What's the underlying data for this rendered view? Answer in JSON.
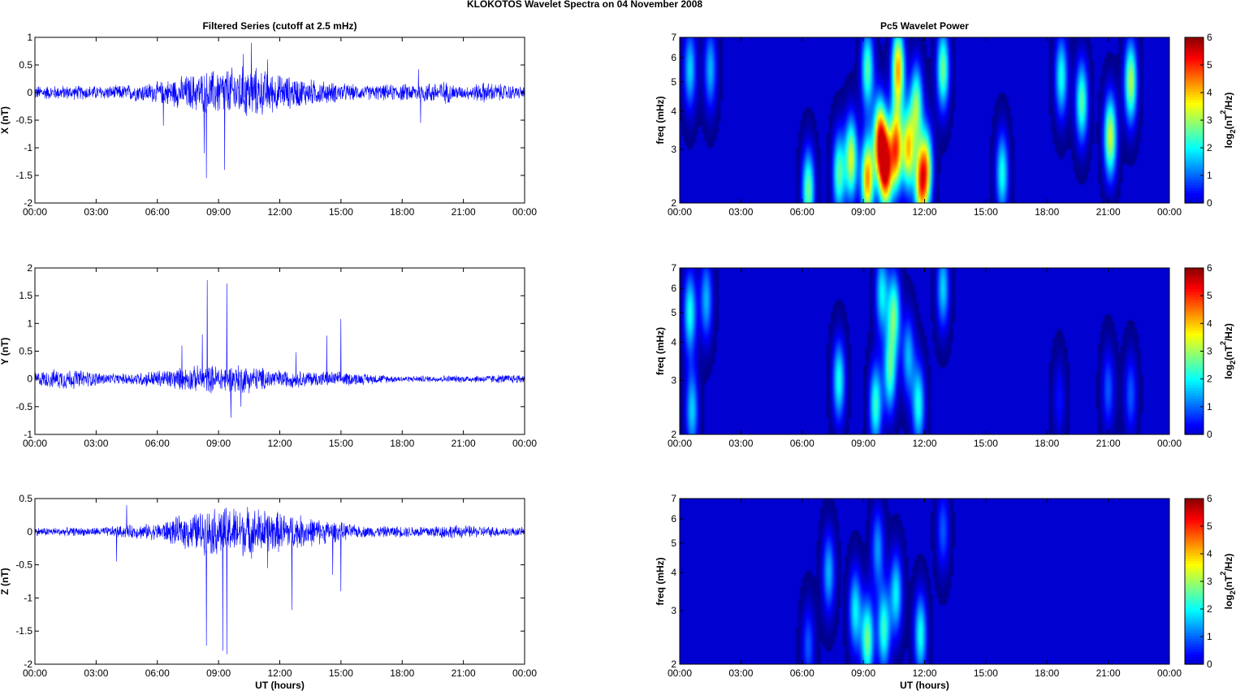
{
  "figure_title": "KLOKOTOS Wavelet Spectra on 04 November  2008",
  "time_ticks": [
    "00:00",
    "03:00",
    "06:00",
    "09:00",
    "12:00",
    "15:00",
    "18:00",
    "21:00",
    "00:00"
  ],
  "colorbar": {
    "label_prefix": "log",
    "label_sub": "2",
    "label_mid": "(nT",
    "label_sup": "2",
    "label_end": "/Hz)",
    "ticks": [
      "0",
      "1",
      "2",
      "3",
      "4",
      "5",
      "6"
    ],
    "colormap": "jet",
    "range": [
      0,
      6
    ]
  },
  "chart_data": [
    {
      "type": "line",
      "title": "Filtered Series (cutoff at 2.5 mHz)",
      "ylabel": "X (nT)",
      "xlabel": "",
      "xlim_hours": [
        0,
        24
      ],
      "ylim": [
        -2,
        1
      ],
      "yticks": [
        "1",
        "0.5",
        "0",
        "-0.5",
        "-1",
        "-1.5",
        "-2"
      ],
      "line_color": "#0000ff",
      "noise_envelope": [
        {
          "t": 0,
          "amp": 0.12
        },
        {
          "t": 4,
          "amp": 0.12
        },
        {
          "t": 6,
          "amp": 0.18
        },
        {
          "t": 7.5,
          "amp": 0.3
        },
        {
          "t": 9,
          "amp": 0.4
        },
        {
          "t": 10.5,
          "amp": 0.45
        },
        {
          "t": 12,
          "amp": 0.3
        },
        {
          "t": 14,
          "amp": 0.2
        },
        {
          "t": 16,
          "amp": 0.12
        },
        {
          "t": 18.5,
          "amp": 0.15
        },
        {
          "t": 20,
          "amp": 0.2
        },
        {
          "t": 21,
          "amp": 0.1
        },
        {
          "t": 22,
          "amp": 0.18
        },
        {
          "t": 24,
          "amp": 0.1
        }
      ],
      "spikes": [
        {
          "t": 8.4,
          "value": -1.55
        },
        {
          "t": 8.3,
          "value": -1.1
        },
        {
          "t": 9.3,
          "value": -1.4
        },
        {
          "t": 10.6,
          "value": 0.9
        },
        {
          "t": 10.2,
          "value": 0.7
        },
        {
          "t": 18.9,
          "value": -0.55
        },
        {
          "t": 18.8,
          "value": 0.42
        },
        {
          "t": 6.3,
          "value": -0.6
        },
        {
          "t": 11.4,
          "value": 0.6
        }
      ]
    },
    {
      "type": "line",
      "title": "",
      "ylabel": "Y (nT)",
      "xlabel": "",
      "xlim_hours": [
        0,
        24
      ],
      "ylim": [
        -1,
        2
      ],
      "yticks": [
        "2",
        "1.5",
        "1",
        "0.5",
        "0",
        "-0.5",
        "-1"
      ],
      "line_color": "#0000ff",
      "noise_envelope": [
        {
          "t": 0,
          "amp": 0.12
        },
        {
          "t": 1.5,
          "amp": 0.18
        },
        {
          "t": 4,
          "amp": 0.08
        },
        {
          "t": 6,
          "amp": 0.15
        },
        {
          "t": 8,
          "amp": 0.22
        },
        {
          "t": 10,
          "amp": 0.25
        },
        {
          "t": 12,
          "amp": 0.15
        },
        {
          "t": 15,
          "amp": 0.12
        },
        {
          "t": 18,
          "amp": 0.05
        },
        {
          "t": 21,
          "amp": 0.06
        },
        {
          "t": 24,
          "amp": 0.08
        }
      ],
      "spikes": [
        {
          "t": 8.45,
          "value": 1.78
        },
        {
          "t": 9.4,
          "value": 1.72
        },
        {
          "t": 8.2,
          "value": 0.8
        },
        {
          "t": 15.0,
          "value": 1.08
        },
        {
          "t": 14.3,
          "value": 0.78
        },
        {
          "t": 9.6,
          "value": -0.7
        },
        {
          "t": 10.1,
          "value": -0.5
        },
        {
          "t": 7.2,
          "value": 0.6
        },
        {
          "t": 12.8,
          "value": 0.48
        }
      ]
    },
    {
      "type": "line",
      "title": "",
      "ylabel": "Z (nT)",
      "xlabel": "UT (hours)",
      "xlim_hours": [
        0,
        24
      ],
      "ylim": [
        -2,
        0.5
      ],
      "yticks": [
        "0.5",
        "0",
        "-0.5",
        "-1",
        "-1.5",
        "-2"
      ],
      "line_color": "#0000ff",
      "noise_envelope": [
        {
          "t": 0,
          "amp": 0.06
        },
        {
          "t": 3,
          "amp": 0.06
        },
        {
          "t": 6,
          "amp": 0.12
        },
        {
          "t": 7.5,
          "amp": 0.25
        },
        {
          "t": 9,
          "amp": 0.35
        },
        {
          "t": 10.5,
          "amp": 0.35
        },
        {
          "t": 12,
          "amp": 0.28
        },
        {
          "t": 14,
          "amp": 0.18
        },
        {
          "t": 16,
          "amp": 0.08
        },
        {
          "t": 18.5,
          "amp": 0.08
        },
        {
          "t": 20,
          "amp": 0.1
        },
        {
          "t": 24,
          "amp": 0.06
        }
      ],
      "spikes": [
        {
          "t": 8.4,
          "value": -1.72
        },
        {
          "t": 9.4,
          "value": -1.85
        },
        {
          "t": 9.2,
          "value": -1.8
        },
        {
          "t": 12.6,
          "value": -1.18
        },
        {
          "t": 15.0,
          "value": -0.9
        },
        {
          "t": 14.6,
          "value": -0.65
        },
        {
          "t": 4.0,
          "value": -0.45
        },
        {
          "t": 4.5,
          "value": 0.4
        },
        {
          "t": 11.4,
          "value": -0.55
        }
      ]
    },
    {
      "type": "heatmap",
      "title": "Pc5 Wavelet Power",
      "ylabel": "freq (mHz)",
      "xlabel": "",
      "xlim_hours": [
        0,
        24
      ],
      "ylim_mhz": [
        2,
        7
      ],
      "yscale": "log",
      "yticks": [
        "7",
        "6",
        "5",
        "4",
        "3",
        "2"
      ],
      "clim": [
        0,
        6
      ],
      "blobs": [
        {
          "t": 9.2,
          "f": 2.4,
          "p": 4.8
        },
        {
          "t": 10.1,
          "f": 2.6,
          "p": 5.6
        },
        {
          "t": 9.8,
          "f": 3.2,
          "p": 5.2
        },
        {
          "t": 10.6,
          "f": 3.0,
          "p": 5.0
        },
        {
          "t": 10.7,
          "f": 5.5,
          "p": 4.6
        },
        {
          "t": 8.4,
          "f": 2.8,
          "p": 3.8
        },
        {
          "t": 11.8,
          "f": 2.3,
          "p": 4.2
        },
        {
          "t": 12.1,
          "f": 2.6,
          "p": 3.6
        },
        {
          "t": 11.2,
          "f": 3.0,
          "p": 4.2
        },
        {
          "t": 6.3,
          "f": 2.2,
          "p": 3.2
        },
        {
          "t": 7.8,
          "f": 2.5,
          "p": 3.0
        },
        {
          "t": 12.9,
          "f": 5.5,
          "p": 3.2
        },
        {
          "t": 15.8,
          "f": 2.5,
          "p": 2.6
        },
        {
          "t": 18.7,
          "f": 5.2,
          "p": 2.6
        },
        {
          "t": 19.7,
          "f": 4.3,
          "p": 3.0
        },
        {
          "t": 21.1,
          "f": 3.3,
          "p": 3.8
        },
        {
          "t": 22.1,
          "f": 5.0,
          "p": 3.6
        },
        {
          "t": 0.5,
          "f": 5.5,
          "p": 2.2
        },
        {
          "t": 1.5,
          "f": 5.5,
          "p": 2.0
        },
        {
          "t": 9.2,
          "f": 5.5,
          "p": 3.0
        },
        {
          "t": 11.6,
          "f": 4.2,
          "p": 3.2
        }
      ]
    },
    {
      "type": "heatmap",
      "title": "",
      "ylabel": "freq (mHz)",
      "xlabel": "",
      "xlim_hours": [
        0,
        24
      ],
      "ylim_mhz": [
        2,
        7
      ],
      "yscale": "log",
      "yticks": [
        "7",
        "6",
        "5",
        "4",
        "3",
        "2"
      ],
      "clim": [
        0,
        6
      ],
      "blobs": [
        {
          "t": 0.6,
          "f": 2.4,
          "p": 2.2
        },
        {
          "t": 0.5,
          "f": 5.0,
          "p": 2.6
        },
        {
          "t": 1.3,
          "f": 5.5,
          "p": 2.0
        },
        {
          "t": 7.8,
          "f": 3.0,
          "p": 2.6
        },
        {
          "t": 9.6,
          "f": 2.5,
          "p": 2.8
        },
        {
          "t": 10.3,
          "f": 3.2,
          "p": 2.8
        },
        {
          "t": 10.5,
          "f": 5.0,
          "p": 3.0
        },
        {
          "t": 9.9,
          "f": 5.8,
          "p": 2.4
        },
        {
          "t": 11.7,
          "f": 2.5,
          "p": 2.6
        },
        {
          "t": 12.9,
          "f": 6.0,
          "p": 2.2
        },
        {
          "t": 11.2,
          "f": 3.6,
          "p": 2.0
        },
        {
          "t": 21.0,
          "f": 2.8,
          "p": 1.4
        },
        {
          "t": 22.1,
          "f": 2.7,
          "p": 1.4
        },
        {
          "t": 18.6,
          "f": 2.6,
          "p": 0.9
        }
      ]
    },
    {
      "type": "heatmap",
      "title": "",
      "ylabel": "freq (mHz)",
      "xlabel": "UT (hours)",
      "xlim_hours": [
        0,
        24
      ],
      "ylim_mhz": [
        2,
        7
      ],
      "yscale": "log",
      "yticks": [
        "7",
        "6",
        "5",
        "4",
        "3",
        "2"
      ],
      "clim": [
        0,
        6
      ],
      "blobs": [
        {
          "t": 9.2,
          "f": 2.4,
          "p": 3.2
        },
        {
          "t": 10.0,
          "f": 2.6,
          "p": 2.8
        },
        {
          "t": 8.6,
          "f": 3.0,
          "p": 2.4
        },
        {
          "t": 11.8,
          "f": 2.5,
          "p": 2.6
        },
        {
          "t": 7.3,
          "f": 4.0,
          "p": 2.0
        },
        {
          "t": 10.6,
          "f": 3.4,
          "p": 2.4
        },
        {
          "t": 9.7,
          "f": 4.8,
          "p": 1.8
        },
        {
          "t": 6.3,
          "f": 2.3,
          "p": 1.4
        },
        {
          "t": 12.9,
          "f": 5.5,
          "p": 1.4
        }
      ]
    }
  ]
}
